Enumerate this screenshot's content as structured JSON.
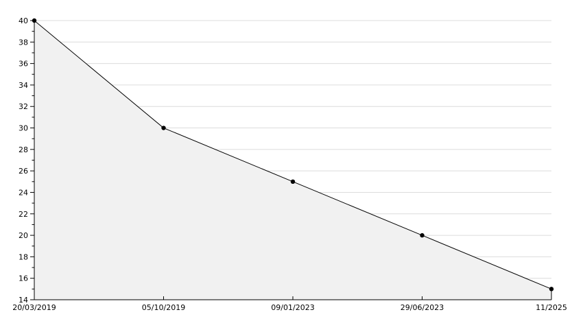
{
  "chart_data": {
    "type": "area",
    "title": "",
    "xlabel": "",
    "ylabel": "",
    "x": [
      "20/03/2019",
      "05/10/2019",
      "09/01/2023",
      "29/06/2023",
      "11/2025"
    ],
    "values": [
      40,
      30,
      25,
      20,
      15
    ],
    "ylim": [
      14,
      40
    ],
    "y_major_tick_step": 2,
    "y_minor_tick_step": 1,
    "grid": "horizontal-major",
    "legend": "none",
    "marker": "filled-circle",
    "colors": {
      "background": "#ffffff",
      "fill": "#f1f1f1",
      "line": "#000000",
      "marker": "#000000",
      "axis": "#000000",
      "grid": "#dcdcdc",
      "tick_label": "#000000"
    }
  }
}
